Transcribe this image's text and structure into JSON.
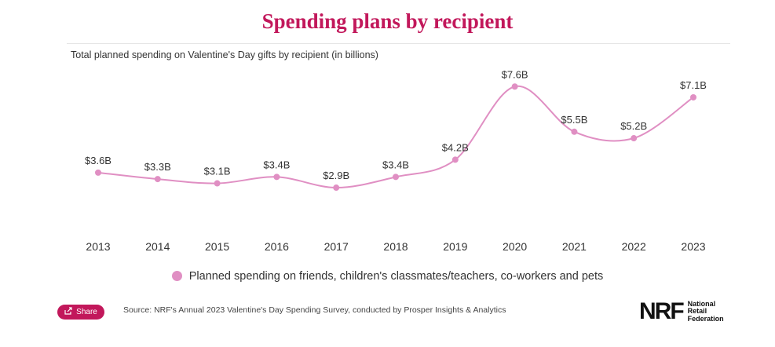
{
  "title": "Spending plans by recipient",
  "subtitle": "Total planned spending on Valentine's Day gifts by recipient (in billions)",
  "legend_label": "Planned spending on friends, children's classmates/teachers, co-workers and pets",
  "share_label": "Share",
  "source": "Source: NRF's Annual 2023 Valentine's Day Spending Survey, conducted by Prosper Insights & Analytics",
  "logo": {
    "mark": "NRF",
    "line1": "National",
    "line2": "Retail",
    "line3": "Federation"
  },
  "colors": {
    "accent": "#c2185b",
    "series": "#e08fc3"
  },
  "chart_data": {
    "type": "line",
    "title": "Spending plans by recipient",
    "categories": [
      "2013",
      "2014",
      "2015",
      "2016",
      "2017",
      "2018",
      "2019",
      "2020",
      "2021",
      "2022",
      "2023"
    ],
    "series": [
      {
        "name": "Planned spending on friends, children's classmates/teachers, co-workers and pets",
        "values": [
          3.6,
          3.3,
          3.1,
          3.4,
          2.9,
          3.4,
          4.2,
          7.6,
          5.5,
          5.2,
          7.1
        ],
        "labels": [
          "$3.6B",
          "$3.3B",
          "$3.1B",
          "$3.4B",
          "$2.9B",
          "$3.4B",
          "$4.2B",
          "$7.6B",
          "$5.5B",
          "$5.2B",
          "$7.1B"
        ]
      }
    ],
    "xlabel": "",
    "ylabel": "",
    "unit": "billions",
    "grid": false,
    "legend_position": "bottom"
  }
}
